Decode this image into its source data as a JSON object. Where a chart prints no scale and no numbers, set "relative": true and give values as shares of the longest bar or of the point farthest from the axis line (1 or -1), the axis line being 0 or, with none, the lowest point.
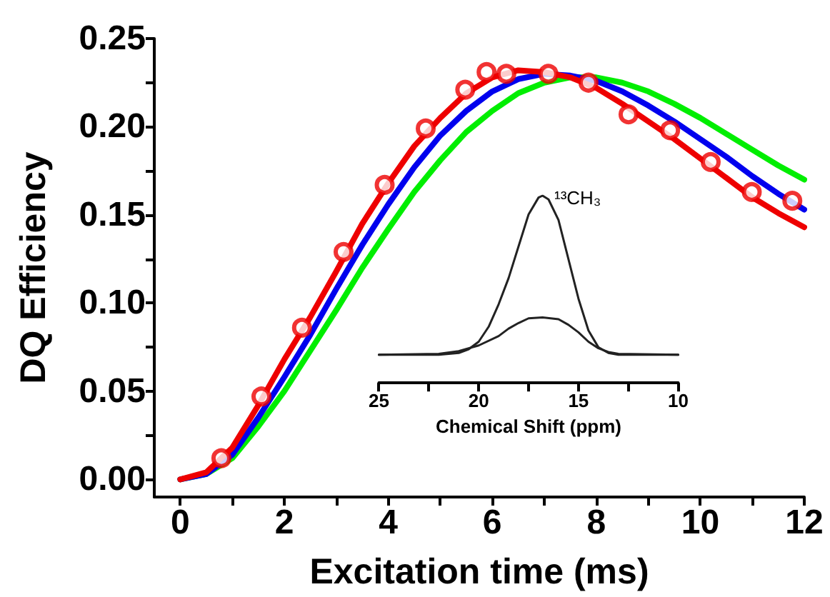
{
  "chart_data": [
    {
      "type": "line",
      "xlabel": "Excitation time (ms)",
      "ylabel": "DQ Efficiency",
      "xlim": [
        -0.5,
        12
      ],
      "xticks": [
        0,
        {
          "value": 1,
          "label": null
        },
        2,
        {
          "value": 3,
          "label": null
        },
        4,
        {
          "value": 5,
          "label": null
        },
        6,
        {
          "value": 7,
          "label": null
        },
        8,
        {
          "value": 9,
          "label": null
        },
        10,
        {
          "value": 11,
          "label": null
        },
        12
      ],
      "ylim": [
        -0.01,
        0.25
      ],
      "yticks": [
        {
          "value": 0,
          "label": "0.00"
        },
        {
          "value": 0.025,
          "label": null
        },
        {
          "value": 0.05,
          "label": "0.05"
        },
        {
          "value": 0.075,
          "label": null
        },
        {
          "value": 0.1,
          "label": "0.10"
        },
        {
          "value": 0.125,
          "label": null
        },
        {
          "value": 0.15,
          "label": "0.15"
        },
        {
          "value": 0.175,
          "label": null
        },
        {
          "value": 0.2,
          "label": "0.20"
        },
        {
          "value": 0.225,
          "label": null
        },
        {
          "value": 0.25,
          "label": "0.25"
        }
      ],
      "grid": false,
      "line_style": "solid",
      "series": [
        {
          "color": "#00ee00",
          "marker": "none",
          "x": [
            0,
            0.5,
            1,
            1.5,
            2,
            2.5,
            3,
            3.5,
            4,
            4.5,
            5,
            5.5,
            6,
            6.5,
            7,
            7.5,
            8,
            8.5,
            9,
            9.5,
            10,
            10.5,
            11,
            11.5,
            12
          ],
          "values": [
            0,
            0.003,
            0.012,
            0.03,
            0.05,
            0.073,
            0.096,
            0.12,
            0.142,
            0.163,
            0.181,
            0.197,
            0.209,
            0.219,
            0.225,
            0.228,
            0.228,
            0.225,
            0.22,
            0.213,
            0.205,
            0.196,
            0.187,
            0.178,
            0.17
          ]
        },
        {
          "color": "#0000ee",
          "marker": "none",
          "x": [
            0,
            0.5,
            1,
            1.5,
            2,
            2.5,
            3,
            3.5,
            4,
            4.5,
            5,
            5.5,
            6,
            6.5,
            7,
            7.5,
            8,
            8.5,
            9,
            9.5,
            10,
            10.5,
            11,
            11.5,
            12
          ],
          "values": [
            0,
            0.003,
            0.014,
            0.035,
            0.058,
            0.082,
            0.108,
            0.133,
            0.156,
            0.177,
            0.195,
            0.209,
            0.22,
            0.227,
            0.23,
            0.229,
            0.226,
            0.22,
            0.212,
            0.203,
            0.193,
            0.183,
            0.172,
            0.162,
            0.153
          ]
        },
        {
          "color": "#ee0000",
          "marker": "none",
          "x": [
            0,
            0.5,
            1,
            1.5,
            2,
            2.5,
            3,
            3.5,
            4,
            4.5,
            5,
            5.5,
            6,
            6.5,
            7,
            7.5,
            8,
            8.5,
            9,
            9.5,
            10,
            10.5,
            11,
            11.5,
            12
          ],
          "values": [
            0,
            0.004,
            0.018,
            0.042,
            0.068,
            0.092,
            0.118,
            0.145,
            0.168,
            0.189,
            0.205,
            0.219,
            0.228,
            0.232,
            0.231,
            0.228,
            0.222,
            0.213,
            0.203,
            0.193,
            0.182,
            0.171,
            0.16,
            0.151,
            0.143
          ]
        },
        {
          "type": "scatter",
          "color": "#ee0000",
          "marker": "circle",
          "x": [
            0.79,
            1.56,
            2.34,
            3.14,
            3.93,
            4.72,
            5.48,
            5.89,
            6.27,
            7.08,
            7.85,
            8.62,
            9.42,
            10.2,
            10.99,
            11.77
          ],
          "values": [
            0.012,
            0.047,
            0.086,
            0.129,
            0.167,
            0.199,
            0.221,
            0.231,
            0.23,
            0.23,
            0.225,
            0.207,
            0.198,
            0.18,
            0.163,
            0.158
          ]
        }
      ]
    },
    {
      "type": "line",
      "relative": true,
      "xlabel": "Chemical Shift (ppm)",
      "xlim": [
        25,
        10
      ],
      "xticks": [
        25,
        {
          "value": 22.5,
          "label": null
        },
        20,
        {
          "value": 17.5,
          "label": null
        },
        15,
        {
          "value": 12.5,
          "label": null
        },
        10
      ],
      "tick_labels": "x",
      "grid": false,
      "line_style": "solid",
      "annotations": [
        "¹³CH₃"
      ],
      "series": [
        {
          "color": "#222222",
          "marker": "none",
          "x": [
            25,
            22,
            21,
            20.5,
            20,
            19.5,
            19,
            18.5,
            18,
            17.5,
            17,
            16.8,
            16.5,
            16,
            15.5,
            15,
            14.5,
            14,
            13.5,
            13,
            10
          ],
          "values": [
            0.15,
            0.15,
            0.16,
            0.18,
            0.22,
            0.3,
            0.42,
            0.56,
            0.73,
            0.9,
            0.99,
            1,
            0.98,
            0.87,
            0.66,
            0.45,
            0.28,
            0.19,
            0.16,
            0.15,
            0.15
          ]
        },
        {
          "color": "#222222",
          "marker": "none",
          "x": [
            25,
            22,
            21,
            20,
            19,
            18.5,
            18,
            17.5,
            16.8,
            16,
            15.5,
            15,
            14.5,
            14,
            13.5,
            13,
            10
          ],
          "values": [
            0.15,
            0.155,
            0.17,
            0.2,
            0.25,
            0.29,
            0.32,
            0.345,
            0.35,
            0.34,
            0.31,
            0.27,
            0.22,
            0.185,
            0.165,
            0.155,
            0.15
          ]
        }
      ]
    }
  ]
}
